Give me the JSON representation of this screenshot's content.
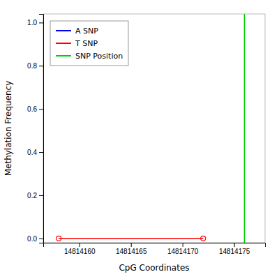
{
  "chart_data": {
    "type": "line",
    "xlabel": "CpG Coordinates",
    "ylabel": "Methylation Frequency",
    "xlim": [
      14814156.5,
      14814178
    ],
    "ylim": [
      -0.02,
      1.04
    ],
    "xticks": [
      14814160,
      14814165,
      14814170,
      14814175
    ],
    "yticks": [
      {
        "value": 0.0,
        "label": "0.0"
      },
      0.2,
      0.4,
      0.6,
      0.8,
      {
        "value": 1.0,
        "label": "1.0"
      }
    ],
    "series": [
      {
        "name": "A SNP",
        "color": "#0000ff",
        "x": [],
        "values": [],
        "marker": "circle",
        "line_style": "solid"
      },
      {
        "name": "T SNP",
        "color": "#ff0000",
        "x": [
          14814158,
          14814172
        ],
        "values": [
          0.0,
          0.0
        ],
        "marker": "circle",
        "line_style": "solid"
      },
      {
        "name": "SNP Position",
        "color": "#00cc00",
        "type": "vline",
        "x": [
          14814176
        ]
      }
    ],
    "grid": false,
    "legend": "upper left"
  }
}
